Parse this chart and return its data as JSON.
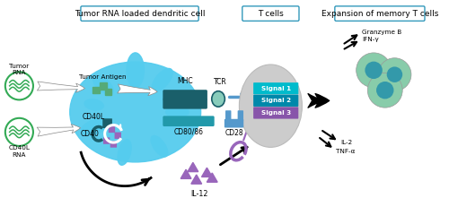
{
  "title_dc": "Tumor RNA loaded dendritic cell",
  "title_tcell": "T cells",
  "title_expansion": "Expansion of memory T cells",
  "label_tumor_rna": "Tumor\nRNA",
  "label_cd40l_rna": "CD40L\nRNA",
  "label_tumor_antigen": "Tumor Antigen",
  "label_mhc": "MHC",
  "label_tcr": "TCR",
  "label_cd80_86": "CD80/86",
  "label_cd28": "CD28",
  "label_cd40l": "CD40L",
  "label_cd40": "CD40",
  "label_il12": "IL-12",
  "label_signal1": "Signal 1",
  "label_signal2": "Signal 2",
  "label_signal3": "Signal 3",
  "label_granzyme": "Granzyme B",
  "label_ifng": "IFN-γ",
  "label_il2": "IL-2",
  "label_tnfa": "TNF-α",
  "color_dc_body": "#55CCEE",
  "color_mhc": "#1A5F6A",
  "color_tcr": "#88CCBB",
  "color_cd80": "#2299AA",
  "color_cd28": "#5599CC",
  "color_signal1": "#00BBCC",
  "color_signal2": "#0088AA",
  "color_signal3": "#8855AA",
  "color_tcell_outer": "#88CCAA",
  "color_tcell_inner": "#3399AA",
  "color_antigen": "#55AA77",
  "color_il12": "#9966BB",
  "color_rna_border": "#33AA55",
  "color_box_border": "#3399BB",
  "bg_color": "#FFFFFF"
}
